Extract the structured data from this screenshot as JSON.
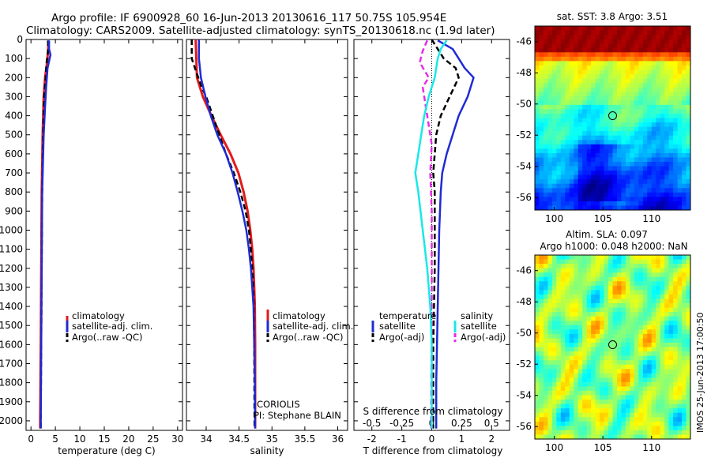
{
  "header": {
    "line1": "Argo profile: IF 6900928_60 16-Jun-2013 20130616_117 50.75S 105.954E",
    "line2": "Climatology: CARS2009. Satellite-adjusted climatology: synTS_20130618.nc (1.9d later)"
  },
  "colors": {
    "clim": "#e41a1c",
    "sat": "#1f2bd4",
    "argo": "#000000",
    "sat_s": "#19e8e8",
    "argo_s": "#e62ee6"
  },
  "chart_data": [
    {
      "type": "line",
      "panel": "temperature",
      "xlabel": "temperature (deg C)",
      "ylabel": "",
      "xlim": [
        -1,
        31
      ],
      "ylim": [
        2050,
        0
      ],
      "xticks": [
        "0",
        "5",
        "10",
        "15",
        "20",
        "25",
        "30"
      ],
      "xtick_values": [
        0,
        5,
        10,
        15,
        20,
        25,
        30
      ],
      "yticks": [
        "0",
        "100",
        "200",
        "300",
        "400",
        "500",
        "600",
        "700",
        "800",
        "900",
        "1000",
        "1100",
        "1200",
        "1300",
        "1400",
        "1500",
        "1600",
        "1700",
        "1800",
        "1900",
        "2000"
      ],
      "ytick_values": [
        0,
        100,
        200,
        300,
        400,
        500,
        600,
        700,
        800,
        900,
        1000,
        1100,
        1200,
        1300,
        1400,
        1500,
        1600,
        1700,
        1800,
        1900,
        2000
      ],
      "legend": [
        "climatology",
        "satellite-adj. clim.",
        "Argo(..raw -QC)"
      ],
      "series": [
        {
          "key": "clim",
          "style": "solid",
          "width": 3,
          "points": [
            [
              3.6,
              10
            ],
            [
              3.5,
              60
            ],
            [
              3.3,
              120
            ],
            [
              2.9,
              200
            ],
            [
              2.6,
              300
            ],
            [
              2.4,
              500
            ],
            [
              2.2,
              800
            ],
            [
              2.1,
              1200
            ],
            [
              2.0,
              1600
            ],
            [
              1.9,
              2000
            ],
            [
              1.9,
              2040
            ]
          ]
        },
        {
          "key": "argo",
          "style": "dashed",
          "width": 2.5,
          "points": [
            [
              3.5,
              5
            ],
            [
              3.5,
              60
            ],
            [
              3.2,
              120
            ],
            [
              3.0,
              200
            ],
            [
              2.7,
              300
            ],
            [
              2.5,
              500
            ],
            [
              2.3,
              800
            ],
            [
              2.2,
              1200
            ],
            [
              2.1,
              1600
            ],
            [
              2.0,
              2000
            ],
            [
              2.0,
              2040
            ]
          ]
        },
        {
          "key": "sat",
          "style": "solid",
          "width": 2.5,
          "points": [
            [
              3.7,
              5
            ],
            [
              3.7,
              50
            ],
            [
              4.0,
              80
            ],
            [
              3.4,
              150
            ],
            [
              3.1,
              250
            ],
            [
              2.9,
              350
            ],
            [
              2.6,
              500
            ],
            [
              2.3,
              800
            ],
            [
              2.2,
              1200
            ],
            [
              2.1,
              1600
            ],
            [
              2.0,
              2000
            ],
            [
              2.0,
              2040
            ]
          ]
        }
      ]
    },
    {
      "type": "line",
      "panel": "salinity",
      "xlabel": "salinity",
      "ylabel": "",
      "xlim": [
        33.7,
        36.15
      ],
      "ylim": [
        2050,
        0
      ],
      "xticks": [
        "34",
        "34.5",
        "35",
        "35.5",
        "36"
      ],
      "xtick_values": [
        34,
        34.5,
        35,
        35.5,
        36
      ],
      "legend": [
        "climatology",
        "satellite-adj. clim.",
        "Argo(..raw -QC)"
      ],
      "annotations": [
        "CORIOLIS",
        "PI: Stephane BLAIN"
      ],
      "series": [
        {
          "key": "clim",
          "style": "solid",
          "width": 3,
          "points": [
            [
              33.84,
              0
            ],
            [
              33.85,
              100
            ],
            [
              33.86,
              200
            ],
            [
              33.95,
              300
            ],
            [
              34.08,
              400
            ],
            [
              34.22,
              500
            ],
            [
              34.37,
              600
            ],
            [
              34.49,
              700
            ],
            [
              34.57,
              800
            ],
            [
              34.63,
              900
            ],
            [
              34.67,
              1000
            ],
            [
              34.7,
              1100
            ],
            [
              34.72,
              1200
            ],
            [
              34.73,
              1300
            ],
            [
              34.74,
              1400
            ],
            [
              34.745,
              1600
            ],
            [
              34.745,
              2040
            ]
          ]
        },
        {
          "key": "argo",
          "style": "dashed",
          "width": 2.5,
          "points": [
            [
              33.78,
              0
            ],
            [
              33.78,
              100
            ],
            [
              33.83,
              150
            ],
            [
              33.93,
              250
            ],
            [
              34.0,
              300
            ],
            [
              34.1,
              400
            ],
            [
              34.2,
              500
            ],
            [
              34.3,
              600
            ],
            [
              34.42,
              700
            ],
            [
              34.52,
              800
            ],
            [
              34.6,
              900
            ],
            [
              34.65,
              1000
            ],
            [
              34.68,
              1100
            ],
            [
              34.7,
              1200
            ],
            [
              34.715,
              1300
            ],
            [
              34.725,
              1400
            ],
            [
              34.73,
              1600
            ],
            [
              34.735,
              2040
            ]
          ]
        },
        {
          "key": "sat",
          "style": "solid",
          "width": 2.5,
          "points": [
            [
              33.89,
              0
            ],
            [
              33.89,
              100
            ],
            [
              33.92,
              200
            ],
            [
              33.99,
              300
            ],
            [
              34.07,
              400
            ],
            [
              34.17,
              500
            ],
            [
              34.3,
              600
            ],
            [
              34.4,
              700
            ],
            [
              34.48,
              800
            ],
            [
              34.55,
              900
            ],
            [
              34.61,
              1000
            ],
            [
              34.65,
              1100
            ],
            [
              34.68,
              1200
            ],
            [
              34.7,
              1300
            ],
            [
              34.72,
              1400
            ],
            [
              34.73,
              1600
            ],
            [
              34.74,
              1800
            ],
            [
              34.745,
              2040
            ]
          ]
        }
      ]
    },
    {
      "type": "line",
      "panel": "differences",
      "xlabel": "T difference from climatology",
      "x2label": "S difference from climatology",
      "ylabel": "",
      "xlim": [
        -2.6,
        2.6
      ],
      "ylim": [
        2050,
        0
      ],
      "xticks": [
        "-2",
        "-1",
        "0",
        "1",
        "2"
      ],
      "xtick_values": [
        -2,
        -1,
        0,
        1,
        2
      ],
      "x2ticks": [
        "-0.5",
        "-0.25",
        "0",
        "0.25",
        "0.5"
      ],
      "x2tick_values": [
        -0.5,
        -0.25,
        0,
        0.25,
        0.5
      ],
      "legend_headers": [
        "temperature",
        "salinity"
      ],
      "legend": [
        "satellite",
        "Argo(-adj)",
        "satellite",
        "Argo(-adj)"
      ],
      "series": [
        {
          "key": "sat",
          "style": "solid",
          "width": 2.5,
          "points": [
            [
              0.2,
              5
            ],
            [
              0.7,
              50
            ],
            [
              0.9,
              100
            ],
            [
              1.1,
              150
            ],
            [
              1.4,
              200
            ],
            [
              1.2,
              300
            ],
            [
              0.9,
              400
            ],
            [
              0.7,
              500
            ],
            [
              0.5,
              600
            ],
            [
              0.35,
              700
            ],
            [
              0.3,
              800
            ],
            [
              0.25,
              1000
            ],
            [
              0.2,
              1400
            ],
            [
              0.15,
              1800
            ],
            [
              0.15,
              2040
            ]
          ]
        },
        {
          "key": "argo",
          "style": "dashed",
          "width": 2.5,
          "points": [
            [
              0.0,
              0
            ],
            [
              0.2,
              50
            ],
            [
              0.4,
              100
            ],
            [
              0.8,
              150
            ],
            [
              0.9,
              200
            ],
            [
              0.6,
              300
            ],
            [
              0.3,
              400
            ],
            [
              0.15,
              500
            ],
            [
              0.1,
              600
            ],
            [
              0.05,
              700
            ],
            [
              0.1,
              800
            ],
            [
              0.1,
              1200
            ],
            [
              0.05,
              1600
            ],
            [
              0.05,
              2040
            ]
          ]
        },
        {
          "key": "argo_s",
          "style": "dashed",
          "width": 2.5,
          "points": [
            [
              -0.15,
              5
            ],
            [
              -0.3,
              60
            ],
            [
              -0.4,
              120
            ],
            [
              -0.1,
              200
            ],
            [
              -0.3,
              250
            ],
            [
              -0.2,
              350
            ],
            [
              -0.1,
              450
            ],
            [
              0.0,
              550
            ],
            [
              -0.05,
              700
            ],
            [
              0.0,
              900
            ],
            [
              0.0,
              1100
            ],
            [
              0.0,
              1400
            ],
            [
              -0.02,
              2040
            ]
          ]
        },
        {
          "key": "sat_s",
          "style": "solid",
          "width": 2.5,
          "points": [
            [
              0.5,
              5
            ],
            [
              0.3,
              50
            ],
            [
              0.2,
              100
            ],
            [
              0.1,
              200
            ],
            [
              -0.1,
              300
            ],
            [
              -0.25,
              400
            ],
            [
              -0.35,
              500
            ],
            [
              -0.45,
              600
            ],
            [
              -0.55,
              700
            ],
            [
              -0.45,
              800
            ],
            [
              -0.3,
              1000
            ],
            [
              -0.15,
              1200
            ],
            [
              -0.05,
              1400
            ],
            [
              0.0,
              1600
            ],
            [
              0.0,
              2040
            ]
          ]
        }
      ]
    },
    {
      "type": "heatmap",
      "panel": "sst-map",
      "title": "sat. SST: 3.8 Argo: 3.51",
      "xlim": [
        98,
        114
      ],
      "ylim": [
        -56.8,
        -45
      ],
      "xticks": [
        "100",
        "105",
        "110"
      ],
      "xtick_values": [
        100,
        105,
        110
      ],
      "yticks": [
        "-46",
        "-48",
        "-50",
        "-52",
        "-54",
        "-56"
      ],
      "ytick_values": [
        -46,
        -48,
        -50,
        -52,
        -54,
        -56
      ],
      "marker": {
        "lon": 106.0,
        "lat": -50.75
      }
    },
    {
      "type": "heatmap",
      "panel": "sla-map",
      "title": "Altim. SLA: 0.097",
      "subtitle": "Argo h1000: 0.048 h2000: NaN",
      "xlim": [
        98,
        114
      ],
      "ylim": [
        -56.8,
        -45
      ],
      "xticks": [
        "100",
        "105",
        "110"
      ],
      "xtick_values": [
        100,
        105,
        110
      ],
      "yticks": [
        "-46",
        "-48",
        "-50",
        "-52",
        "-54",
        "-56"
      ],
      "ytick_values": [
        -46,
        -48,
        -50,
        -52,
        -54,
        -56
      ],
      "marker": {
        "lon": 106.0,
        "lat": -50.75
      }
    }
  ],
  "footer": {
    "stamp": "IMOS 25-Jun-2013 17:00:50"
  }
}
